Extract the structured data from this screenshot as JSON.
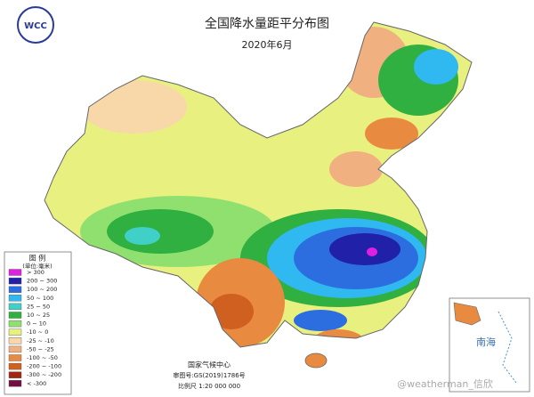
{
  "title": "全国降水量距平分布图",
  "subtitle": "2020年6月",
  "logo": "WCC",
  "legend": {
    "title": "图 例",
    "unit": "(单位:毫米)",
    "items": [
      {
        "label": "> 300",
        "color": "#e020e0"
      },
      {
        "label": "200 ~ 300",
        "color": "#2020a8"
      },
      {
        "label": "100 ~ 200",
        "color": "#2c6ee0"
      },
      {
        "label": "50 ~ 100",
        "color": "#30b8f0"
      },
      {
        "label": "25 ~ 50",
        "color": "#40d0c8"
      },
      {
        "label": "10 ~ 25",
        "color": "#30b040"
      },
      {
        "label": "0 ~ 10",
        "color": "#90e070"
      },
      {
        "label": "-10 ~ 0",
        "color": "#e8f080"
      },
      {
        "label": "-25 ~ -10",
        "color": "#f8d8a8"
      },
      {
        "label": "-50 ~ -25",
        "color": "#f0b080"
      },
      {
        "label": "-100 ~ -50",
        "color": "#e88a40"
      },
      {
        "label": "-200 ~ -100",
        "color": "#d06020"
      },
      {
        "label": "-300 ~ -200",
        "color": "#a02810"
      },
      {
        "label": "< -300",
        "color": "#701040"
      }
    ]
  },
  "footer": {
    "org": "国家气候中心",
    "approval": "审图号:GS(2019)1786号",
    "scale": "比例尺 1:20 000 000"
  },
  "inset": {
    "label": "南海"
  },
  "watermark": "@weatherman_信欣"
}
